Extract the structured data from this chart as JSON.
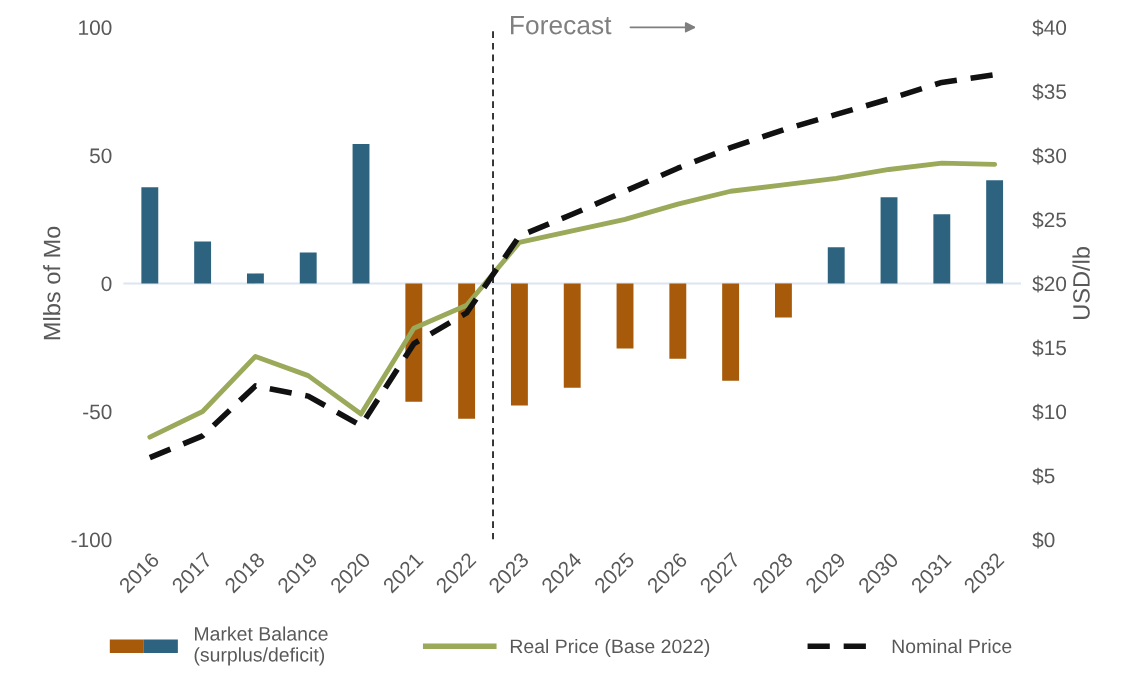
{
  "chart_data": {
    "type": "bar",
    "x": [
      2016,
      2017,
      2018,
      2019,
      2020,
      2021,
      2022,
      2023,
      2024,
      2025,
      2026,
      2027,
      2028,
      2029,
      2030,
      2031,
      2032
    ],
    "xlim": [
      2015.5,
      2032.5
    ],
    "xticks": [
      2016,
      2017,
      2018,
      2019,
      2020,
      2021,
      2022,
      2023,
      2024,
      2025,
      2026,
      2027,
      2028,
      2029,
      2030,
      2031,
      2032
    ],
    "ylabel": "Mlbs of Mo",
    "y2label": "USD/lb",
    "ylim": [
      -100,
      100
    ],
    "yticks": [
      -100,
      -50,
      0,
      50,
      100
    ],
    "y2lim": [
      0,
      40
    ],
    "y2ticks": [
      {
        "value": 0,
        "label": "$0"
      },
      {
        "value": 5,
        "label": "$5"
      },
      {
        "value": 10,
        "label": "$10"
      },
      {
        "value": 15,
        "label": "$15"
      },
      {
        "value": 20,
        "label": "$20"
      },
      {
        "value": 25,
        "label": "$25"
      },
      {
        "value": 30,
        "label": "$30"
      },
      {
        "value": 35,
        "label": "$35"
      },
      {
        "value": 40,
        "label": "$40"
      }
    ],
    "series": [
      {
        "name": "Market Balance\n(surplus/deficit)",
        "colors": [
          "#2e6380",
          "#2e6380",
          "#2e6380",
          "#2e6380",
          "#2e6380",
          "#a65a0a",
          "#a65a0a",
          "#a65a0a",
          "#a65a0a",
          "#a65a0a",
          "#a65a0a",
          "#a65a0a",
          "#a65a0a",
          "#2e6380",
          "#2e6380",
          "#2e6380",
          "#2e6380"
        ],
        "values": [
          37.6,
          16.4,
          3.9,
          12.1,
          54.4,
          -46.2,
          -52.8,
          -47.7,
          -40.7,
          -25.4,
          -29.4,
          -38.0,
          -13.3,
          14.1,
          33.7,
          27.0,
          40.3
        ]
      },
      {
        "name": "Real Price (Base 2022)",
        "type": "line",
        "axis": "y2",
        "color": "#9aaa5a",
        "line_style": "solid",
        "values": [
          8.0,
          10.0,
          14.3,
          12.8,
          9.8,
          16.5,
          18.3,
          23.2,
          24.1,
          25.0,
          26.2,
          27.2,
          27.7,
          28.2,
          28.9,
          29.4,
          29.3
        ]
      },
      {
        "name": "Nominal Price",
        "type": "line",
        "axis": "y2",
        "color": "#111111",
        "line_style": "dashed",
        "values": [
          6.4,
          8.1,
          12.0,
          11.2,
          8.9,
          15.3,
          17.7,
          23.7,
          25.4,
          27.2,
          29.0,
          30.6,
          32.0,
          33.2,
          34.4,
          35.7,
          36.3
        ]
      }
    ],
    "ref_lines": [
      {
        "axis": "x",
        "value": 2022.5,
        "label": "Forecast",
        "color": "#111111",
        "line_style": "dashed"
      },
      {
        "axis": "y",
        "value": 0,
        "color": "#dce6f2",
        "line_style": "solid"
      }
    ],
    "legend": "bottom",
    "grid": false
  }
}
